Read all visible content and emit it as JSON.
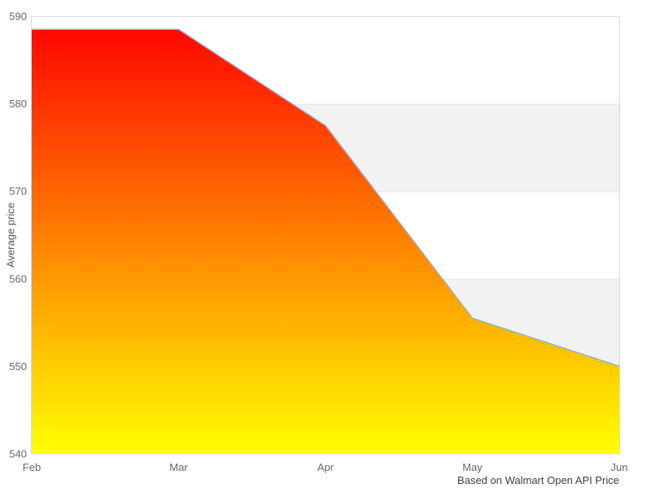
{
  "chart_data": {
    "type": "area",
    "categories": [
      "Feb",
      "Mar",
      "Apr",
      "May",
      "Jun"
    ],
    "values": [
      588.5,
      588.5,
      577.5,
      555.5,
      550
    ],
    "title": "",
    "xlabel": "",
    "ylabel": "Average price",
    "ylim": [
      540,
      590
    ],
    "yticks": [
      540,
      550,
      560,
      570,
      580,
      590
    ],
    "grid": true,
    "legend_position": "none",
    "caption": "Based on Walmart Open API Price",
    "colors": {
      "area_gradient_top": "#ff0000",
      "area_gradient_bottom": "#ffff00",
      "line": "#88b4d8",
      "gridline": "#e6e6e6",
      "alternate_band": "#f2f2f2",
      "plot_border": "#d9d9d9",
      "tick_label": "#666666",
      "axis_title": "#555555",
      "caption_text": "#3d3d3d",
      "background": "#ffffff"
    }
  }
}
